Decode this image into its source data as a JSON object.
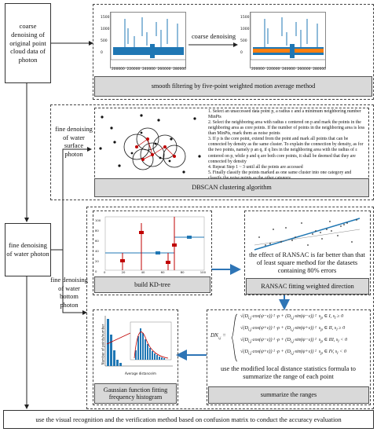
{
  "steps": {
    "coarse_denoising_source": "coarse denoising of original point cloud data of photon",
    "fine_denoising": "fine denoising of water photon",
    "fine_surface": "fine denoising of water surface photon",
    "fine_bottom": "fine denoising of water bottom photon"
  },
  "coarse": {
    "arrow_label": "coarse denoising",
    "method": "smooth filtering by five-point weighted motion average method",
    "y_ticks": [
      "1500",
      "1000",
      "500",
      "0"
    ],
    "x_ticks": [
      "200000",
      "220000",
      "240000",
      "260000",
      "280000"
    ]
  },
  "dbscan": {
    "title": "DBSCAN clustering algorithm",
    "steps": [
      "1. Select an unaccessed data point p, a radius ε and a minimum neighboring number MinPts",
      "2. Select the neighboring area with radius ε centered on p and mark the points in the neighboring area as core points. If the number of points in the neighboring area is less than MinPts, mark them as noise points",
      "3. If p is the core point, extend from the point and mark all points that can be connected by density as the same cluster. To explain the connection by density, as for the two points, namely p an q, if q lies in the neighboring area with the radius of ε centered on p, while p and q are both core points, it shall be deemed that they are connected by density",
      "4. Repeat Step 1 ~ 3 until all the points are accessed",
      "5. Finally classify the points marked as one same cluster into one category and classify the noise points as the other category"
    ]
  },
  "kdtree": {
    "title": "build KD-tree",
    "x_ticks": [
      "0",
      "20",
      "40",
      "60",
      "80",
      "100"
    ],
    "y_ticks": [
      "100",
      "80",
      "60",
      "40",
      "20",
      "0"
    ]
  },
  "ransac": {
    "title": "RANSAC fitting weighted direction",
    "note": "the effect of RANSAC is far better than that of least square method for the datasets containing 80% errors"
  },
  "gaussian": {
    "title": "Gaussian function fitting frequency histogram",
    "xlabel": "Average distance/m",
    "ylabel": "Number of points/number"
  },
  "ranges": {
    "title": "summarize the ranges",
    "description": "use the modified local distance statistics formula to summarize the range of each point",
    "lhs": "DN",
    "lhs_sub": "i,j",
    "rows": [
      {
        "op1": "cos",
        "op2": "sin",
        "s1": "−",
        "cond": "s",
        "quad": "I",
        "rel": "≥ 0"
      },
      {
        "op1": "cos",
        "op2": "sin",
        "s1": "+",
        "cond": "s",
        "quad": "II",
        "rel": "≥ 0"
      },
      {
        "op1": "cos",
        "op2": "sin",
        "s1": "−",
        "cond": "s",
        "quad": "III",
        "rel": "< 0"
      },
      {
        "op1": "cos",
        "op2": "sin",
        "s1": "+",
        "cond": "s",
        "quad": "IV",
        "rel": "< 0"
      }
    ]
  },
  "evaluation": "use the visual recognition and the verification method based on confusion matrix to conduct the accuracy evaluation",
  "colors": {
    "series_blue": "#1f77b4",
    "series_orange": "#ff7f0e",
    "arrow_blue": "#2e75b6",
    "panel_gray": "#d9d9d9",
    "red_marker": "#c00000"
  }
}
